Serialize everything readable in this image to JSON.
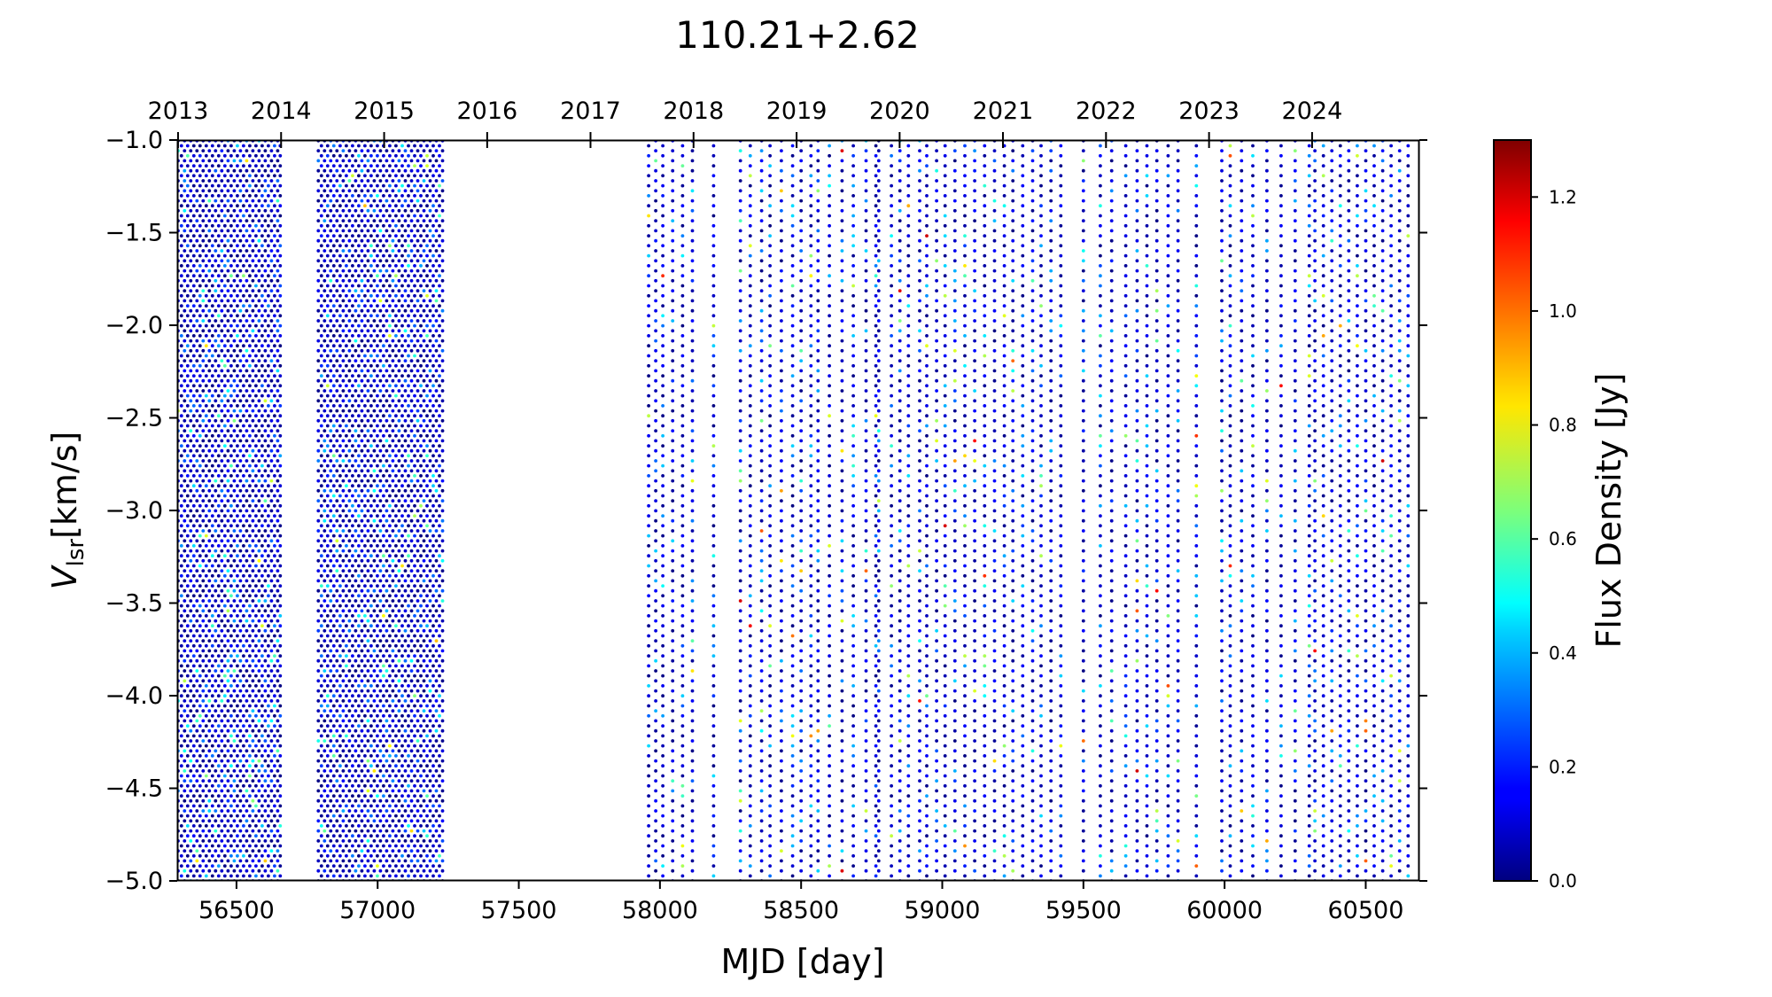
{
  "chart_data": {
    "type": "scatter",
    "title": "110.21+2.62",
    "xlabel": "MJD [day]",
    "ylabel_main": "V",
    "ylabel_sub": "lsr",
    "ylabel_unit": "[km/s]",
    "xlim": [
      56290,
      60690
    ],
    "ylim": [
      -5.0,
      -1.0
    ],
    "x_ticks": [
      "56500",
      "57000",
      "57500",
      "58000",
      "58500",
      "59000",
      "59500",
      "60000",
      "60500"
    ],
    "y_ticks": [
      "−1.0",
      "−1.5",
      "−2.0",
      "−2.5",
      "−3.0",
      "−3.5",
      "−4.0",
      "−4.5",
      "−5.0"
    ],
    "y_tick_values": [
      -1.0,
      -1.5,
      -2.0,
      -2.5,
      -3.0,
      -3.5,
      -4.0,
      -4.5,
      -5.0
    ],
    "top_axis": {
      "years": [
        "2013",
        "2014",
        "2015",
        "2016",
        "2017",
        "2018",
        "2019",
        "2020",
        "2021",
        "2022",
        "2023",
        "2024"
      ],
      "year_start_mjd": [
        56293,
        56658,
        57023,
        57388,
        57754,
        58119,
        58484,
        58849,
        59215,
        59580,
        59945,
        60310
      ]
    },
    "colorbar": {
      "label": "Flux Density [Jy]",
      "colormap": "jet",
      "range": [
        0.0,
        1.3
      ],
      "ticks": [
        "0.0",
        "0.2",
        "0.4",
        "0.6",
        "0.8",
        "1.0",
        "1.2"
      ],
      "tick_values": [
        0.0,
        0.2,
        0.4,
        0.6,
        0.8,
        1.0,
        1.2
      ]
    },
    "velocity_step": 0.054,
    "observation_mjd": [
      56293,
      56305,
      56316,
      56327,
      56338,
      56349,
      56360,
      56371,
      56382,
      56393,
      56404,
      56415,
      56426,
      56437,
      56448,
      56459,
      56470,
      56481,
      56492,
      56503,
      56514,
      56525,
      56536,
      56547,
      56558,
      56569,
      56580,
      56591,
      56602,
      56613,
      56624,
      56635,
      56646,
      56655,
      56790,
      56801,
      56812,
      56823,
      56834,
      56845,
      56856,
      56867,
      56878,
      56889,
      56900,
      56911,
      56922,
      56933,
      56944,
      56955,
      56966,
      56977,
      56988,
      56999,
      57010,
      57021,
      57032,
      57043,
      57054,
      57065,
      57076,
      57087,
      57098,
      57109,
      57120,
      57131,
      57142,
      57153,
      57164,
      57175,
      57186,
      57197,
      57208,
      57219,
      57230,
      57960,
      57985,
      58010,
      58045,
      58080,
      58115,
      58190,
      58285,
      58320,
      58360,
      58390,
      58430,
      58470,
      58500,
      58535,
      58560,
      58600,
      58645,
      58685,
      58730,
      58765,
      58775,
      58820,
      58850,
      58880,
      58920,
      58945,
      58980,
      59010,
      59045,
      59080,
      59115,
      59150,
      59185,
      59220,
      59250,
      59285,
      59320,
      59350,
      59385,
      59420,
      59500,
      59560,
      59600,
      59650,
      59690,
      59725,
      59760,
      59800,
      59835,
      59900,
      59990,
      60020,
      60060,
      60100,
      60150,
      60200,
      60250,
      60300,
      60320,
      60350,
      60380,
      60410,
      60440,
      60470,
      60500,
      60530,
      60560,
      60590,
      60620,
      60650
    ],
    "mean_flux_jy": 0.15
  }
}
